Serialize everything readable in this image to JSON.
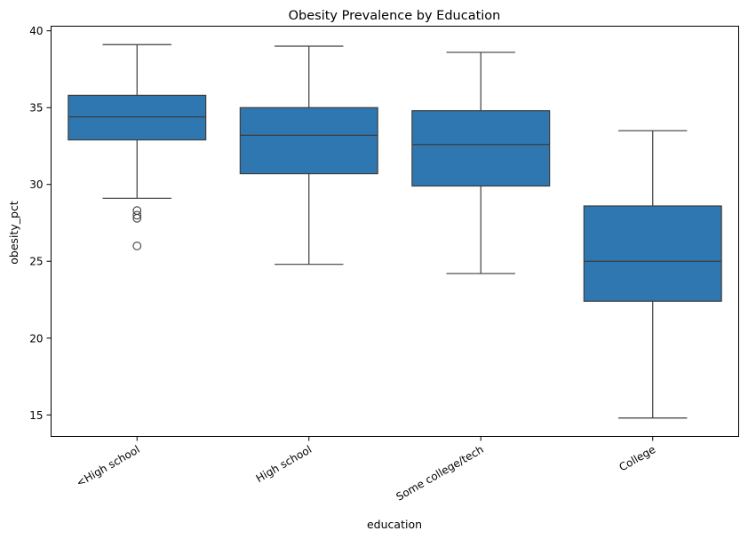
{
  "chart_data": {
    "type": "box",
    "title": "Obesity Prevalence by Education",
    "xlabel": "education",
    "ylabel": "obesity_pct",
    "ylim": [
      13.6,
      40.3
    ],
    "yticks": [
      15,
      20,
      25,
      30,
      35,
      40
    ],
    "categories": [
      "<High school",
      "High school",
      "Some college/tech",
      "College"
    ],
    "color": "#2f77b1",
    "edge_color": "#3d3d3d",
    "boxes": [
      {
        "category": "<High school",
        "whisker_low": 29.1,
        "q1": 32.9,
        "median": 34.4,
        "q3": 35.8,
        "whisker_high": 39.1,
        "outliers": [
          28.3,
          28.0,
          27.8,
          26.0
        ]
      },
      {
        "category": "High school",
        "whisker_low": 24.8,
        "q1": 30.7,
        "median": 33.2,
        "q3": 35.0,
        "whisker_high": 39.0,
        "outliers": []
      },
      {
        "category": "Some college/tech",
        "whisker_low": 24.2,
        "q1": 29.9,
        "median": 32.6,
        "q3": 34.8,
        "whisker_high": 38.6,
        "outliers": []
      },
      {
        "category": "College",
        "whisker_low": 14.8,
        "q1": 22.4,
        "median": 25.0,
        "q3": 28.6,
        "whisker_high": 33.5,
        "outliers": []
      }
    ]
  }
}
